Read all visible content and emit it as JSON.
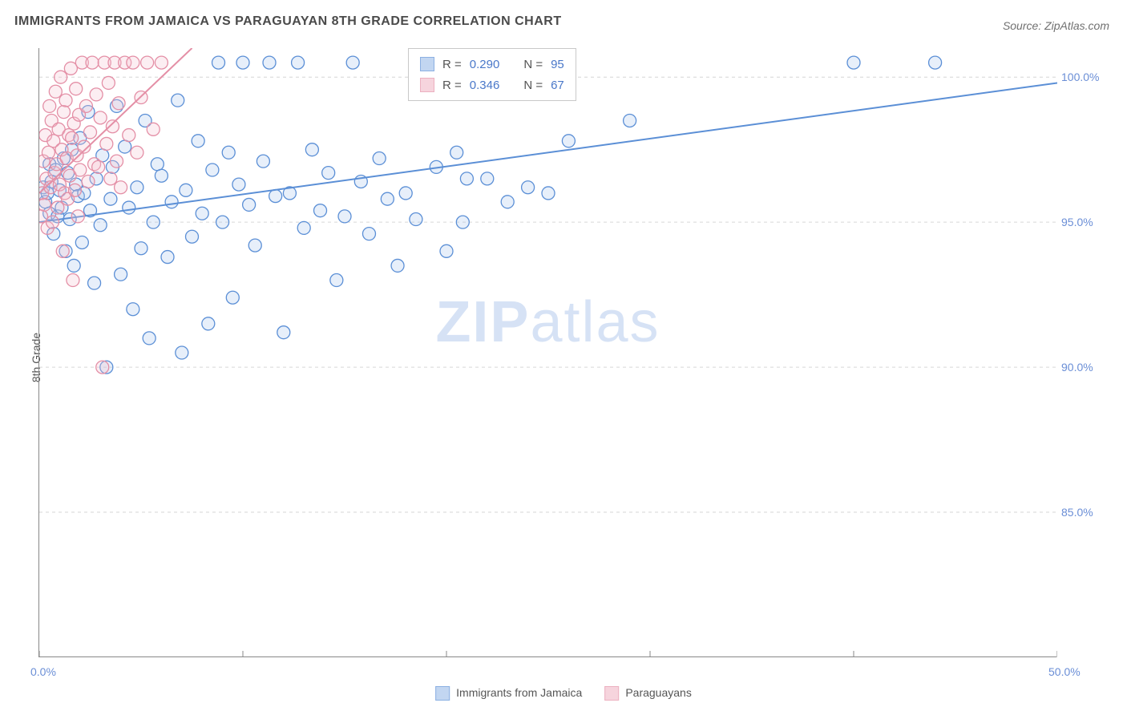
{
  "title": "IMMIGRANTS FROM JAMAICA VS PARAGUAYAN 8TH GRADE CORRELATION CHART",
  "source_prefix": "Source: ",
  "source": "ZipAtlas.com",
  "ylabel": "8th Grade",
  "watermark_bold": "ZIP",
  "watermark_light": "atlas",
  "watermark_color": "#d6e2f5",
  "chart": {
    "type": "scatter",
    "background_color": "#ffffff",
    "grid_color": "#d6d6d6",
    "grid_dash": "4 4",
    "axis_color": "#888888",
    "xlim": [
      0,
      50
    ],
    "ylim": [
      80,
      101
    ],
    "xticks": [
      0,
      10,
      20,
      30,
      40,
      50
    ],
    "xtick_labels": [
      "0.0%",
      "",
      "",
      "",
      "",
      "50.0%"
    ],
    "yticks": [
      85,
      90,
      95,
      100
    ],
    "ytick_labels": [
      "85.0%",
      "90.0%",
      "95.0%",
      "100.0%"
    ],
    "label_fontsize": 14,
    "label_color": "#6a8ed6",
    "marker_radius": 8,
    "marker_fill_opacity": 0.28,
    "marker_stroke_width": 1.3,
    "line_width": 2
  },
  "series": [
    {
      "key": "jamaica",
      "label": "Immigrants from Jamaica",
      "color": "#5b8fd6",
      "fill": "#a9c6ec",
      "R": "0.290",
      "N": "95",
      "trend": {
        "x1": 0,
        "y1": 95.0,
        "x2": 50,
        "y2": 99.8
      },
      "points": [
        [
          0.2,
          96.2
        ],
        [
          0.3,
          95.7
        ],
        [
          0.4,
          96.0
        ],
        [
          0.5,
          97.0
        ],
        [
          0.5,
          95.3
        ],
        [
          0.6,
          96.4
        ],
        [
          0.7,
          94.6
        ],
        [
          0.8,
          96.8
        ],
        [
          0.9,
          95.2
        ],
        [
          1.0,
          96.1
        ],
        [
          1.1,
          95.5
        ],
        [
          1.2,
          97.2
        ],
        [
          1.3,
          94.0
        ],
        [
          1.4,
          96.7
        ],
        [
          1.5,
          95.1
        ],
        [
          1.6,
          97.5
        ],
        [
          1.7,
          93.5
        ],
        [
          1.8,
          96.3
        ],
        [
          1.9,
          95.9
        ],
        [
          2.0,
          97.9
        ],
        [
          2.1,
          94.3
        ],
        [
          2.2,
          96.0
        ],
        [
          2.4,
          98.8
        ],
        [
          2.5,
          95.4
        ],
        [
          2.7,
          92.9
        ],
        [
          2.8,
          96.5
        ],
        [
          3.0,
          94.9
        ],
        [
          3.1,
          97.3
        ],
        [
          3.3,
          90.0
        ],
        [
          3.5,
          95.8
        ],
        [
          3.6,
          96.9
        ],
        [
          3.8,
          99.0
        ],
        [
          4.0,
          93.2
        ],
        [
          4.2,
          97.6
        ],
        [
          4.4,
          95.5
        ],
        [
          4.6,
          92.0
        ],
        [
          4.8,
          96.2
        ],
        [
          5.0,
          94.1
        ],
        [
          5.2,
          98.5
        ],
        [
          5.4,
          91.0
        ],
        [
          5.6,
          95.0
        ],
        [
          5.8,
          97.0
        ],
        [
          6.0,
          96.6
        ],
        [
          6.3,
          93.8
        ],
        [
          6.5,
          95.7
        ],
        [
          6.8,
          99.2
        ],
        [
          7.0,
          90.5
        ],
        [
          7.2,
          96.1
        ],
        [
          7.5,
          94.5
        ],
        [
          7.8,
          97.8
        ],
        [
          8.0,
          95.3
        ],
        [
          8.3,
          91.5
        ],
        [
          8.5,
          96.8
        ],
        [
          8.8,
          100.5
        ],
        [
          9.0,
          95.0
        ],
        [
          9.3,
          97.4
        ],
        [
          9.5,
          92.4
        ],
        [
          9.8,
          96.3
        ],
        [
          10.0,
          100.5
        ],
        [
          10.3,
          95.6
        ],
        [
          10.6,
          94.2
        ],
        [
          11.0,
          97.1
        ],
        [
          11.3,
          100.5
        ],
        [
          11.6,
          95.9
        ],
        [
          12.0,
          91.2
        ],
        [
          12.3,
          96.0
        ],
        [
          12.7,
          100.5
        ],
        [
          13.0,
          94.8
        ],
        [
          13.4,
          97.5
        ],
        [
          13.8,
          95.4
        ],
        [
          14.2,
          96.7
        ],
        [
          14.6,
          93.0
        ],
        [
          15.0,
          95.2
        ],
        [
          15.4,
          100.5
        ],
        [
          15.8,
          96.4
        ],
        [
          16.2,
          94.6
        ],
        [
          16.7,
          97.2
        ],
        [
          17.1,
          95.8
        ],
        [
          17.6,
          93.5
        ],
        [
          18.0,
          96.0
        ],
        [
          18.5,
          95.1
        ],
        [
          19.0,
          100.5
        ],
        [
          19.5,
          96.9
        ],
        [
          20.0,
          94.0
        ],
        [
          20.5,
          97.4
        ],
        [
          20.8,
          95.0
        ],
        [
          21.0,
          96.5
        ],
        [
          22.0,
          96.5
        ],
        [
          23.0,
          95.7
        ],
        [
          24.0,
          96.2
        ],
        [
          25.0,
          96.0
        ],
        [
          26.0,
          97.8
        ],
        [
          29.0,
          98.5
        ],
        [
          40.0,
          100.5
        ],
        [
          44.0,
          100.5
        ]
      ]
    },
    {
      "key": "paraguay",
      "label": "Paraguayans",
      "color": "#e48fa6",
      "fill": "#f3c2d0",
      "R": "0.346",
      "N": "67",
      "trend": {
        "x1": 0,
        "y1": 96.0,
        "x2": 7.5,
        "y2": 101.0
      },
      "points": [
        [
          0.1,
          95.2
        ],
        [
          0.15,
          96.0
        ],
        [
          0.2,
          97.1
        ],
        [
          0.25,
          95.6
        ],
        [
          0.3,
          98.0
        ],
        [
          0.35,
          96.5
        ],
        [
          0.4,
          94.8
        ],
        [
          0.45,
          97.4
        ],
        [
          0.5,
          99.0
        ],
        [
          0.55,
          96.2
        ],
        [
          0.6,
          98.5
        ],
        [
          0.65,
          95.0
        ],
        [
          0.7,
          97.8
        ],
        [
          0.75,
          96.7
        ],
        [
          0.8,
          99.5
        ],
        [
          0.85,
          97.0
        ],
        [
          0.9,
          95.5
        ],
        [
          0.95,
          98.2
        ],
        [
          1.0,
          96.3
        ],
        [
          1.05,
          100.0
        ],
        [
          1.1,
          97.5
        ],
        [
          1.15,
          94.0
        ],
        [
          1.2,
          98.8
        ],
        [
          1.25,
          96.0
        ],
        [
          1.3,
          99.2
        ],
        [
          1.35,
          97.2
        ],
        [
          1.4,
          95.8
        ],
        [
          1.45,
          98.0
        ],
        [
          1.5,
          96.6
        ],
        [
          1.55,
          100.3
        ],
        [
          1.6,
          97.9
        ],
        [
          1.65,
          93.0
        ],
        [
          1.7,
          98.4
        ],
        [
          1.75,
          96.1
        ],
        [
          1.8,
          99.6
        ],
        [
          1.85,
          97.3
        ],
        [
          1.9,
          95.2
        ],
        [
          1.95,
          98.7
        ],
        [
          2.0,
          96.8
        ],
        [
          2.1,
          100.5
        ],
        [
          2.2,
          97.6
        ],
        [
          2.3,
          99.0
        ],
        [
          2.4,
          96.4
        ],
        [
          2.5,
          98.1
        ],
        [
          2.6,
          100.5
        ],
        [
          2.7,
          97.0
        ],
        [
          2.8,
          99.4
        ],
        [
          2.9,
          96.9
        ],
        [
          3.0,
          98.6
        ],
        [
          3.1,
          90.0
        ],
        [
          3.2,
          100.5
        ],
        [
          3.3,
          97.7
        ],
        [
          3.4,
          99.8
        ],
        [
          3.5,
          96.5
        ],
        [
          3.6,
          98.3
        ],
        [
          3.7,
          100.5
        ],
        [
          3.8,
          97.1
        ],
        [
          3.9,
          99.1
        ],
        [
          4.0,
          96.2
        ],
        [
          4.2,
          100.5
        ],
        [
          4.4,
          98.0
        ],
        [
          4.6,
          100.5
        ],
        [
          4.8,
          97.4
        ],
        [
          5.0,
          99.3
        ],
        [
          5.3,
          100.5
        ],
        [
          5.6,
          98.2
        ],
        [
          6.0,
          100.5
        ]
      ]
    }
  ],
  "legend_labels": {
    "R": "R =",
    "N": "N ="
  },
  "x_axis_legend": [
    {
      "label": "Immigrants from Jamaica",
      "color": "#5b8fd6",
      "fill": "#a9c6ec"
    },
    {
      "label": "Paraguayans",
      "color": "#e48fa6",
      "fill": "#f3c2d0"
    }
  ]
}
